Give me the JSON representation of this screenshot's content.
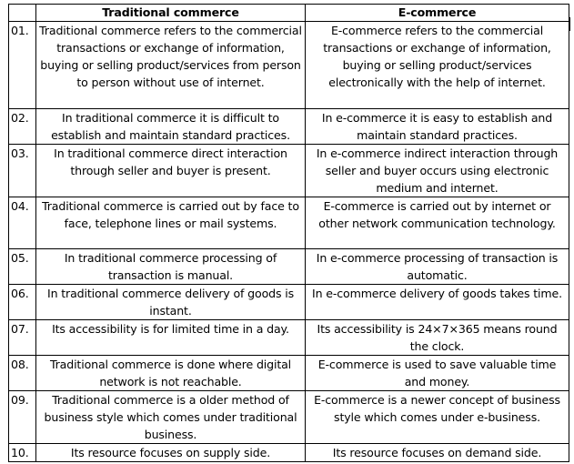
{
  "table": {
    "number_header": "",
    "traditional_header": "Traditional commerce",
    "ecommerce_header": "E-commerce",
    "rows": [
      {
        "num": "01.",
        "traditional": "Traditional commerce refers to the commercial transactions or exchange of information, buying or selling product/services from person to person without use of internet.",
        "ecommerce": "E-commerce refers to the commercial transactions or exchange of information, buying or selling product/services electronically with the help of internet."
      },
      {
        "num": "02.",
        "traditional": "In traditional commerce it is difficult to establish and maintain standard practices.",
        "ecommerce": "In e-commerce it is easy to establish and maintain standard practices."
      },
      {
        "num": "03.",
        "traditional": "In traditional commerce direct interaction through seller and buyer is present.",
        "ecommerce": "In e-commerce indirect interaction through seller and buyer occurs using electronic medium and internet."
      },
      {
        "num": "04.",
        "traditional": "Traditional commerce is carried out by face to face, telephone lines or mail systems.",
        "ecommerce": "E-commerce is carried out by internet or other network communication technology."
      },
      {
        "num": "05.",
        "traditional": "In traditional commerce processing of transaction is manual.",
        "ecommerce": "In e-commerce processing of transaction is automatic."
      },
      {
        "num": "06.",
        "traditional": "In traditional commerce delivery of goods is instant.",
        "ecommerce": "In e-commerce delivery of goods takes time."
      },
      {
        "num": "07.",
        "traditional": "Its accessibility is for limited time in a day.",
        "ecommerce": "Its accessibility is 24×7×365 means round the clock."
      },
      {
        "num": "08.",
        "traditional": "Traditional commerce is done where digital network is not reachable.",
        "ecommerce": "E-commerce is used to save valuable time and money."
      },
      {
        "num": "09.",
        "traditional": "Traditional commerce is a older method of business style which comes under traditional business.",
        "ecommerce": "E-commerce is a newer concept of business style which comes under e-business."
      },
      {
        "num": "10.",
        "traditional": "Its resource focuses on supply side.",
        "ecommerce": "Its resource focuses on demand side."
      }
    ]
  }
}
